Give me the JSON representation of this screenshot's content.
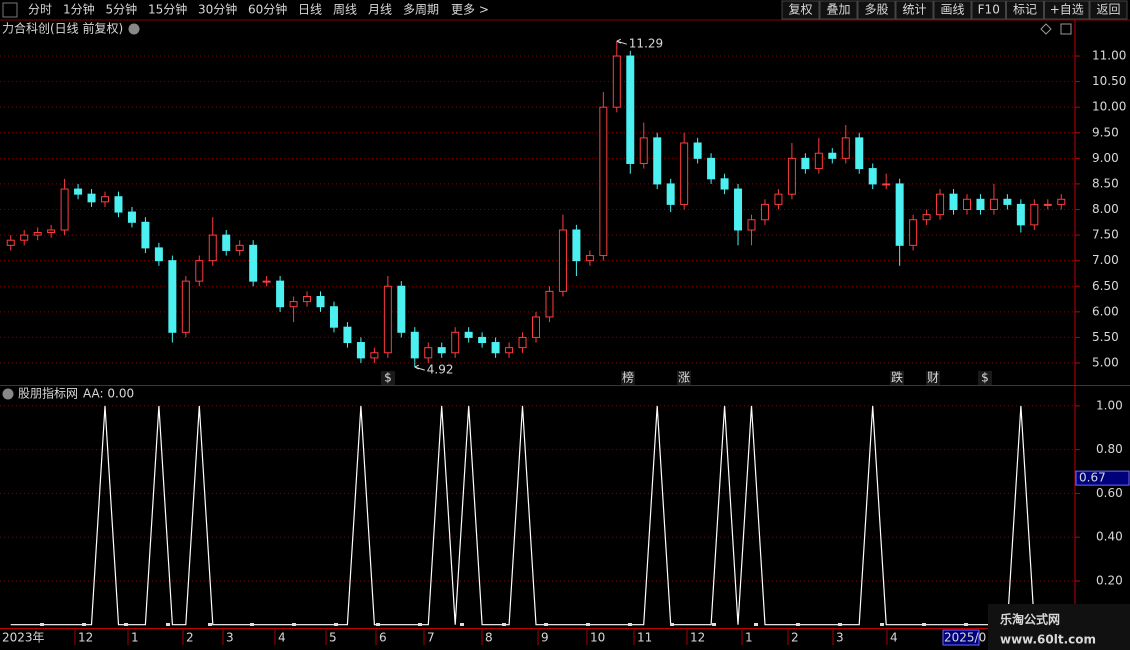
{
  "toolbar": {
    "left": [
      "分时",
      "1分钟",
      "5分钟",
      "15分钟",
      "30分钟",
      "60分钟",
      "日线",
      "周线",
      "月线",
      "多周期",
      "更多 >"
    ],
    "active_index": 6,
    "right": [
      "复权",
      "叠加",
      "多股",
      "统计",
      "画线",
      "F10",
      "标记",
      "+自选",
      "返回"
    ]
  },
  "chart_data": [
    {
      "type": "candlestick",
      "title": "力合科创(日线 前复权)",
      "up_color": "#ff3c3c",
      "down_color": "#4cf0f0",
      "grid": true,
      "ylim": [
        4.57,
        11.704
      ],
      "yticks": [
        {
          "value": 5,
          "label": "5.00"
        },
        {
          "value": 5.5,
          "label": "5.50"
        },
        {
          "value": 6,
          "label": "6.00"
        },
        {
          "value": 6.5,
          "label": "6.50"
        },
        {
          "value": 7,
          "label": "7.00"
        },
        {
          "value": 7.5,
          "label": "7.50"
        },
        {
          "value": 8,
          "label": "8.00"
        },
        {
          "value": 8.5,
          "label": "8.50"
        },
        {
          "value": 9,
          "label": "9.00"
        },
        {
          "value": 9.5,
          "label": "9.50"
        },
        {
          "value": 10,
          "label": "10.00"
        },
        {
          "value": 10.5,
          "label": "10.50"
        },
        {
          "value": 11,
          "label": "11.00"
        }
      ],
      "open": [
        7.3,
        7.4,
        7.5,
        7.55,
        7.6,
        8.4,
        8.3,
        8.15,
        8.25,
        7.95,
        7.75,
        7.25,
        7.0,
        5.6,
        6.6,
        7.0,
        7.5,
        7.2,
        7.3,
        6.6,
        6.6,
        6.1,
        6.2,
        6.3,
        6.1,
        5.7,
        5.4,
        5.1,
        5.2,
        6.5,
        5.6,
        5.1,
        5.3,
        5.2,
        5.6,
        5.5,
        5.4,
        5.2,
        5.3,
        5.5,
        5.9,
        6.4,
        7.6,
        7.0,
        7.1,
        10.0,
        11.0,
        8.9,
        9.4,
        8.5,
        8.1,
        9.3,
        9.0,
        8.6,
        8.4,
        7.6,
        7.8,
        8.1,
        8.3,
        9.0,
        8.8,
        9.1,
        9.0,
        9.4,
        8.8,
        8.5,
        8.5,
        7.3,
        7.8,
        7.9,
        8.3,
        8.0,
        8.2,
        8.0,
        8.2,
        8.1,
        7.7,
        8.1,
        8.1
      ],
      "close": [
        7.4,
        7.5,
        7.55,
        7.6,
        8.4,
        8.3,
        8.15,
        8.25,
        7.95,
        7.75,
        7.25,
        7.0,
        5.6,
        6.6,
        7.0,
        7.5,
        7.2,
        7.3,
        6.6,
        6.6,
        6.1,
        6.2,
        6.3,
        6.1,
        5.7,
        5.4,
        5.1,
        5.2,
        6.5,
        5.6,
        5.1,
        5.3,
        5.2,
        5.6,
        5.5,
        5.4,
        5.2,
        5.3,
        5.5,
        5.9,
        6.4,
        7.6,
        7.0,
        7.1,
        10.0,
        11.0,
        8.9,
        9.4,
        8.5,
        8.1,
        9.3,
        9.0,
        8.6,
        8.4,
        7.6,
        7.8,
        8.1,
        8.3,
        9.0,
        8.8,
        9.1,
        9.0,
        9.4,
        8.8,
        8.5,
        8.5,
        7.3,
        7.8,
        7.9,
        8.3,
        8.0,
        8.2,
        8.0,
        8.2,
        8.1,
        7.7,
        8.1,
        8.1,
        8.2
      ],
      "high": [
        7.5,
        7.6,
        7.65,
        7.7,
        8.6,
        8.5,
        8.4,
        8.35,
        8.35,
        8.05,
        7.85,
        7.35,
        7.1,
        6.7,
        7.1,
        7.85,
        7.6,
        7.4,
        7.4,
        6.7,
        6.7,
        6.3,
        6.4,
        6.4,
        6.2,
        5.8,
        5.5,
        5.3,
        6.7,
        6.6,
        5.7,
        5.4,
        5.4,
        5.7,
        5.7,
        5.6,
        5.5,
        5.4,
        5.6,
        6.0,
        6.5,
        7.9,
        7.7,
        7.2,
        10.3,
        11.29,
        11.1,
        9.7,
        9.5,
        8.6,
        9.5,
        9.4,
        9.1,
        8.7,
        8.5,
        7.9,
        8.2,
        8.4,
        9.3,
        9.1,
        9.4,
        9.2,
        9.65,
        9.5,
        8.9,
        8.7,
        8.6,
        7.9,
        8.0,
        8.4,
        8.4,
        8.3,
        8.3,
        8.5,
        8.3,
        8.2,
        8.2,
        8.2,
        8.3
      ],
      "low": [
        7.2,
        7.3,
        7.4,
        7.45,
        7.5,
        8.2,
        8.05,
        8.05,
        7.85,
        7.65,
        7.15,
        6.9,
        5.4,
        5.5,
        6.5,
        6.9,
        7.1,
        7.1,
        6.5,
        6.5,
        6.0,
        5.8,
        6.1,
        6.0,
        5.6,
        5.3,
        5.0,
        5.0,
        5.1,
        5.5,
        4.92,
        5.0,
        5.1,
        5.1,
        5.4,
        5.3,
        5.1,
        5.1,
        5.2,
        5.4,
        5.8,
        6.3,
        6.7,
        6.9,
        7.0,
        9.9,
        8.7,
        8.8,
        8.4,
        7.95,
        8.0,
        8.9,
        8.5,
        8.3,
        7.3,
        7.3,
        7.7,
        8.0,
        8.2,
        8.7,
        8.7,
        8.9,
        8.9,
        8.7,
        8.4,
        8.4,
        6.9,
        7.2,
        7.7,
        7.8,
        7.9,
        7.9,
        7.9,
        7.9,
        8.0,
        7.55,
        7.6,
        8.0,
        8.0
      ],
      "annotations": [
        {
          "value": 11.29,
          "label": "11.29"
        },
        {
          "value": 4.92,
          "label": "4.92"
        }
      ],
      "events": [
        {
          "label": "$",
          "color": "#ff3030"
        },
        {
          "label": "榜",
          "color": "#ff9a30"
        },
        {
          "label": "涨",
          "color": "#ff3030"
        },
        {
          "label": "跌",
          "color": "#30e030"
        },
        {
          "label": "财",
          "color": "#50a0ff"
        },
        {
          "label": "$",
          "color": "#ff3030"
        }
      ]
    },
    {
      "type": "line",
      "title": "股朋指标网",
      "subtitle": "AA: 0.00",
      "color": "#ffffff",
      "grid": true,
      "ylim": [
        -0.015,
        1.091
      ],
      "yticks": [
        {
          "value": 0.2,
          "label": "0.20"
        },
        {
          "value": 0.4,
          "label": "0.40"
        },
        {
          "value": 0.6,
          "label": "0.60"
        },
        {
          "value": 0.8,
          "label": "0.80"
        },
        {
          "value": 1,
          "label": "1.00"
        }
      ],
      "cursor": {
        "value": 0.67,
        "label": "0.67"
      },
      "values": [
        0,
        0,
        0,
        0,
        0,
        0,
        0,
        1,
        0,
        0,
        0,
        1,
        0,
        0,
        1,
        0,
        0,
        0,
        0,
        0,
        0,
        0,
        0,
        0,
        0,
        0,
        1,
        0,
        0,
        0,
        0,
        0,
        1,
        0,
        1,
        0,
        0,
        0,
        1,
        0,
        0,
        0,
        0,
        0,
        0,
        0,
        0,
        0,
        1,
        0,
        0,
        0,
        0,
        1,
        0,
        1,
        0,
        0,
        0,
        0,
        0,
        0,
        0,
        0,
        1,
        0,
        0,
        0,
        0,
        0,
        0,
        0,
        0,
        0,
        0,
        1,
        0,
        0,
        0
      ]
    }
  ],
  "time_axis": {
    "labels": [
      "2023年",
      "12",
      "1",
      "2",
      "3",
      "4",
      "5",
      "6",
      "7",
      "8",
      "9",
      "10",
      "11",
      "12",
      "1",
      "2",
      "3",
      "4",
      "2025/0"
    ]
  },
  "watermark": {
    "name": "乐淘公式网",
    "url": "www.60lt.com"
  }
}
